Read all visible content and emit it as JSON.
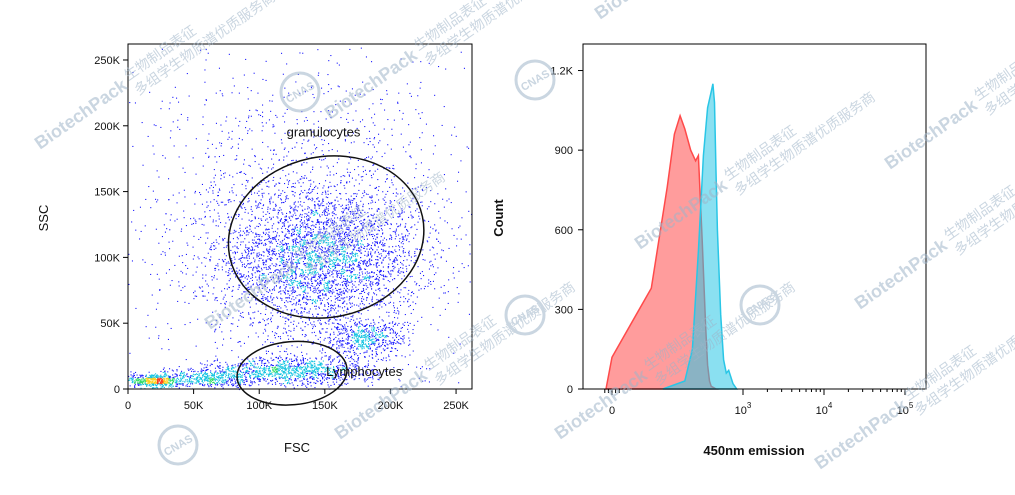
{
  "chart_data": [
    {
      "type": "scatter",
      "subtype": "density-dot-plot",
      "xlabel": "FSC",
      "ylabel": "SSC",
      "xlim": [
        0,
        262144
      ],
      "ylim": [
        0,
        262144
      ],
      "xticks": [
        {
          "value": 0,
          "label": "0"
        },
        {
          "value": 50000,
          "label": "50K"
        },
        {
          "value": 100000,
          "label": "100K"
        },
        {
          "value": 150000,
          "label": "150K"
        },
        {
          "value": 200000,
          "label": "200K"
        },
        {
          "value": 250000,
          "label": "250K"
        }
      ],
      "yticks": [
        {
          "value": 0,
          "label": "0"
        },
        {
          "value": 50000,
          "label": "50K"
        },
        {
          "value": 100000,
          "label": "100K"
        },
        {
          "value": 150000,
          "label": "150K"
        },
        {
          "value": 200000,
          "label": "200K"
        },
        {
          "value": 250000,
          "label": "250K"
        }
      ],
      "color_scale": [
        "#1a1aff",
        "#12c3e0",
        "#33dd66",
        "#ffd21f",
        "#ff3b1f"
      ],
      "populations": [
        {
          "cx": 145000,
          "cy": 98000,
          "sx": 38000,
          "sy": 28000,
          "count": 3400
        },
        {
          "cx": 125000,
          "cy": 14000,
          "sx": 32000,
          "sy": 5500,
          "count": 1100
        },
        {
          "cx": 20000,
          "cy": 6500,
          "sx": 10000,
          "sy": 3000,
          "count": 500
        },
        {
          "cx": 60000,
          "cy": 9000,
          "sx": 16000,
          "sy": 3500,
          "count": 400
        },
        {
          "cx": 180000,
          "cy": 38000,
          "sx": 16000,
          "sy": 7000,
          "count": 500
        },
        {
          "cx": 140000,
          "cy": 140000,
          "sx": 70000,
          "sy": 60000,
          "count": 1500
        }
      ],
      "gates": [
        {
          "label": "granulocytes",
          "cx": 151000,
          "cy": 115500,
          "rx": 75000,
          "ry": 61000,
          "rotate": -12,
          "label_at": [
            149000,
            192000
          ]
        },
        {
          "label": "Lymphocytes",
          "cx": 125000,
          "cy": 12000,
          "rx": 42000,
          "ry": 24000,
          "rotate": -5,
          "label_at": [
            180000,
            10000
          ]
        }
      ]
    },
    {
      "type": "area",
      "subtype": "histogram-overlay",
      "xlabel": "450nm emission",
      "ylabel": "Count",
      "x_scale": "biexponential",
      "ylim": [
        0,
        1300
      ],
      "yticks": [
        {
          "value": 0,
          "label": "0"
        },
        {
          "value": 300,
          "label": "300"
        },
        {
          "value": 600,
          "label": "600"
        },
        {
          "value": 900,
          "label": "900"
        },
        {
          "value": 1200,
          "label": "1.2K"
        }
      ],
      "xticks": [
        {
          "value": 0,
          "label": "0"
        },
        {
          "value": 1000,
          "label": "10",
          "sup": "3"
        },
        {
          "value": 10000,
          "label": "10",
          "sup": "4"
        },
        {
          "value": 100000,
          "label": "10",
          "sup": "5"
        }
      ],
      "series": [
        {
          "color": "#ff4a4a",
          "x": [
            -50,
            0,
            30,
            60,
            80,
            100,
            120,
            150,
            180,
            200,
            230,
            260,
            280,
            300,
            320,
            350,
            380
          ],
          "y": [
            0,
            120,
            380,
            760,
            960,
            1030,
            980,
            900,
            860,
            880,
            560,
            240,
            90,
            30,
            10,
            5,
            0
          ]
        },
        {
          "color": "#29c6e6",
          "x": [
            50,
            120,
            160,
            200,
            240,
            280,
            320,
            340,
            360,
            380,
            400,
            450,
            500,
            550,
            600,
            700,
            800
          ],
          "y": [
            0,
            30,
            150,
            520,
            880,
            1060,
            1120,
            1150,
            1080,
            820,
            600,
            280,
            110,
            60,
            70,
            20,
            0
          ]
        }
      ]
    }
  ],
  "watermarks": [
    {
      "brand": "BiotechPack",
      "slogan_line1": "生物制品表征",
      "slogan_line2": "多组学生物质谱优质服务商"
    },
    {
      "badge": "CNAS"
    }
  ]
}
